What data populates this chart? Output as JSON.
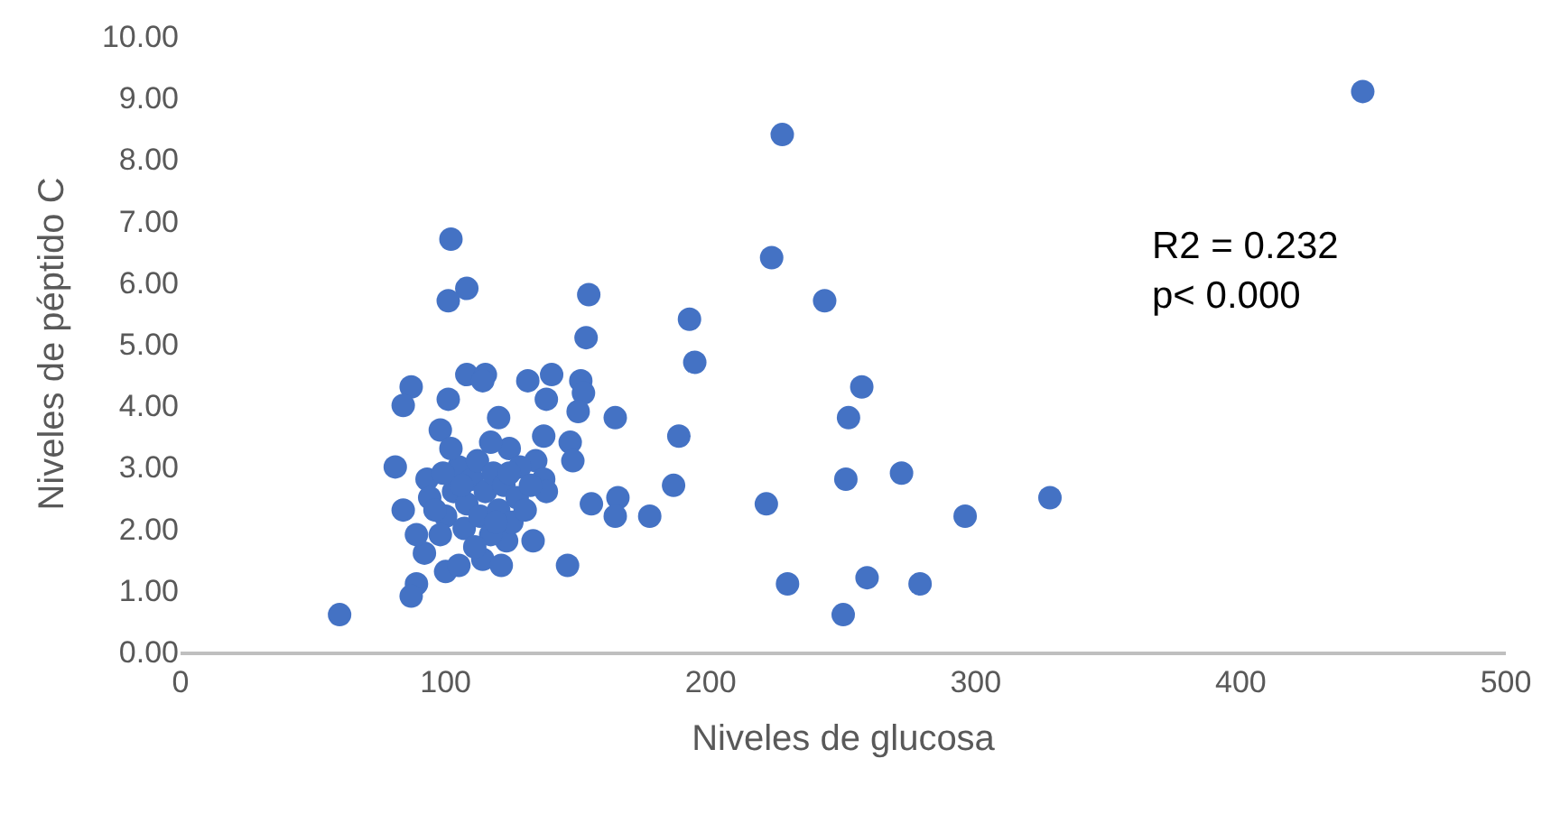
{
  "chart_data": {
    "type": "scatter",
    "xlabel": "Niveles de glucosa",
    "ylabel": "Niveles de péptido C",
    "annotations": [
      "R2 = 0.232\np< 0.000"
    ],
    "marker": "circle",
    "grid": false,
    "legend": false,
    "xlim": [
      0,
      500
    ],
    "xticks": [
      0,
      100,
      200,
      300,
      400,
      500
    ],
    "ylim": [
      0,
      10
    ],
    "yticks": [
      {
        "value": 0,
        "label": "0.00"
      },
      {
        "value": 1,
        "label": "1.00"
      },
      {
        "value": 2,
        "label": "2.00"
      },
      {
        "value": 3,
        "label": "3.00"
      },
      {
        "value": 4,
        "label": "4.00"
      },
      {
        "value": 5,
        "label": "5.00"
      },
      {
        "value": 6,
        "label": "6.00"
      },
      {
        "value": 7,
        "label": "7.00"
      },
      {
        "value": 8,
        "label": "8.00"
      },
      {
        "value": 9,
        "label": "9.00"
      },
      {
        "value": 10,
        "label": "10.00"
      }
    ],
    "series": [
      {
        "color": "#4472c4",
        "x": [
          446,
          227,
          223,
          243,
          192,
          194,
          257,
          252,
          188,
          186,
          251,
          272,
          221,
          296,
          328,
          229,
          259,
          279,
          250,
          102,
          108,
          101,
          154,
          153,
          87,
          84,
          101,
          108,
          115,
          114,
          131,
          140,
          138,
          151,
          152,
          150,
          164,
          98,
          120,
          137,
          147,
          148,
          81,
          124,
          117,
          84,
          155,
          165,
          164,
          177,
          133,
          146,
          89,
          87,
          60,
          100,
          105,
          114,
          121,
          92,
          89,
          93,
          94,
          134,
          137,
          138,
          123,
          100,
          103,
          105,
          107,
          108,
          110,
          112,
          113,
          115,
          117,
          118,
          120,
          122,
          125,
          127,
          128,
          130,
          132,
          96,
          98,
          102,
          106,
          111,
          119,
          124,
          99
        ],
        "values": [
          9.1,
          8.4,
          6.4,
          5.7,
          5.4,
          4.7,
          4.3,
          3.8,
          3.5,
          2.7,
          2.8,
          2.9,
          2.4,
          2.2,
          2.5,
          1.1,
          1.2,
          1.1,
          0.6,
          6.7,
          5.9,
          5.7,
          5.8,
          5.1,
          4.3,
          4.0,
          4.1,
          4.5,
          4.5,
          4.4,
          4.4,
          4.5,
          4.1,
          4.4,
          4.2,
          3.9,
          3.8,
          3.6,
          3.8,
          3.5,
          3.4,
          3.1,
          3.0,
          3.3,
          3.4,
          2.3,
          2.4,
          2.5,
          2.2,
          2.2,
          1.8,
          1.4,
          1.1,
          0.9,
          0.6,
          1.3,
          1.4,
          1.5,
          1.4,
          1.6,
          1.9,
          2.8,
          2.5,
          3.1,
          2.8,
          2.6,
          1.8,
          2.2,
          2.6,
          3.0,
          2.0,
          2.4,
          2.8,
          3.1,
          2.2,
          2.6,
          1.9,
          2.9,
          2.3,
          2.7,
          2.1,
          2.5,
          3.0,
          2.3,
          2.7,
          2.3,
          1.9,
          3.3,
          2.7,
          1.7,
          2.1,
          2.9,
          2.9
        ]
      }
    ]
  }
}
